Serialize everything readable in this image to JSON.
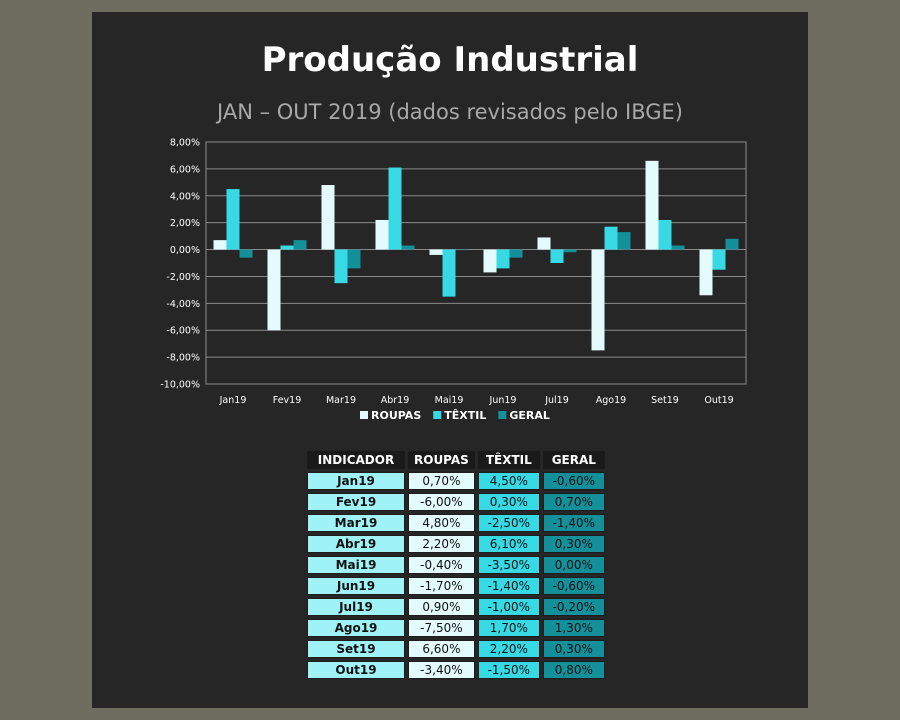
{
  "page": {
    "title": "Produção Industrial",
    "subtitle": "JAN – OUT 2019 (dados revisados pelo IBGE)"
  },
  "colors": {
    "roupas": "#e3fbfd",
    "textil": "#36d9e4",
    "geral": "#14909b",
    "panel_bg": "#262626",
    "outer_bg": "#6e6e60"
  },
  "chart_data": {
    "type": "bar",
    "categories": [
      "Jan19",
      "Fev19",
      "Mar19",
      "Abr19",
      "Mai19",
      "Jun19",
      "Jul19",
      "Ago19",
      "Set19",
      "Out19"
    ],
    "series": [
      {
        "name": "ROUPAS",
        "values": [
          0.7,
          -6.0,
          4.8,
          2.2,
          -0.4,
          -1.7,
          0.9,
          -7.5,
          6.6,
          -3.4
        ]
      },
      {
        "name": "TÊXTIL",
        "values": [
          4.5,
          0.3,
          -2.5,
          6.1,
          -3.5,
          -1.4,
          -1.0,
          1.7,
          2.2,
          -1.5
        ]
      },
      {
        "name": "GERAL",
        "values": [
          -0.6,
          0.7,
          -1.4,
          0.3,
          0.0,
          -0.6,
          -0.2,
          1.3,
          0.3,
          0.8
        ]
      }
    ],
    "ylim": [
      -10,
      8
    ],
    "yticks": [
      "8,00%",
      "6,00%",
      "4,00%",
      "2,00%",
      "0,00%",
      "-2,00%",
      "-4,00%",
      "-6,00%",
      "-8,00%",
      "-10,00%"
    ],
    "grid": true,
    "legend": "bottom"
  },
  "table": {
    "headers": [
      "INDICADOR",
      "ROUPAS",
      "TÊXTIL",
      "GERAL"
    ],
    "rows": [
      [
        "Jan19",
        "0,70%",
        "4,50%",
        "-0,60%"
      ],
      [
        "Fev19",
        "-6,00%",
        "0,30%",
        "0,70%"
      ],
      [
        "Mar19",
        "4,80%",
        "-2,50%",
        "-1,40%"
      ],
      [
        "Abr19",
        "2,20%",
        "6,10%",
        "0,30%"
      ],
      [
        "Mai19",
        "-0,40%",
        "-3,50%",
        "0,00%"
      ],
      [
        "Jun19",
        "-1,70%",
        "-1,40%",
        "-0,60%"
      ],
      [
        "Jul19",
        "0,90%",
        "-1,00%",
        "-0,20%"
      ],
      [
        "Ago19",
        "-7,50%",
        "1,70%",
        "1,30%"
      ],
      [
        "Set19",
        "6,60%",
        "2,20%",
        "0,30%"
      ],
      [
        "Out19",
        "-3,40%",
        "-1,50%",
        "0,80%"
      ]
    ]
  }
}
